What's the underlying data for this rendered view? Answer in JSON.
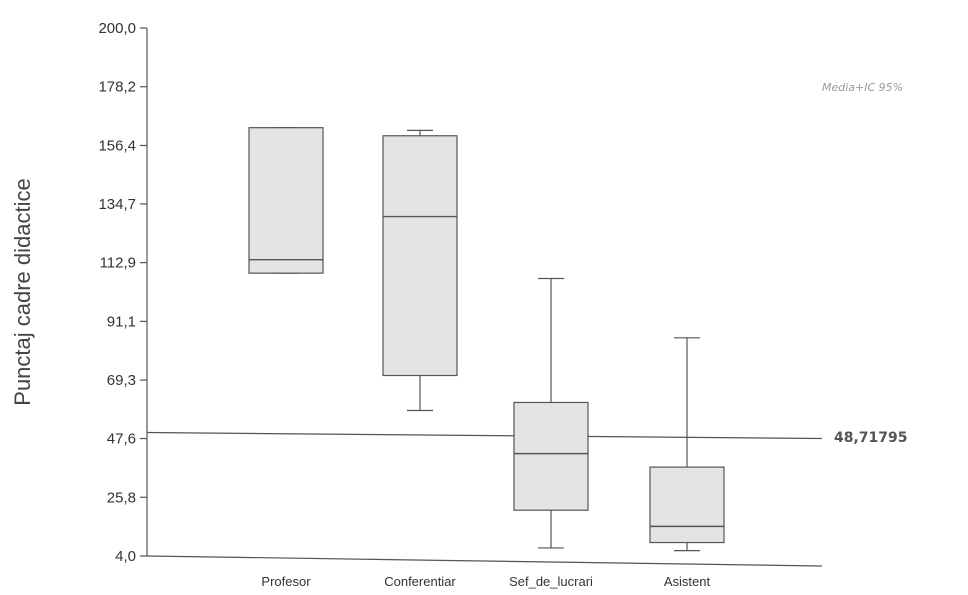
{
  "chart_data": {
    "type": "box",
    "ylabel": "Punctaj cadre didactice",
    "ylim": [
      4.0,
      200.0
    ],
    "y_ticks": [
      "200,0",
      "178,2",
      "156,4",
      "134,7",
      "112,9",
      "91,1",
      "69,3",
      "47,6",
      "25,8",
      "4,0"
    ],
    "y_tick_values": [
      200.0,
      178.2,
      156.4,
      134.7,
      112.9,
      91.1,
      69.3,
      47.6,
      25.8,
      4.0
    ],
    "categories": [
      "Profesor",
      "Conferentiar",
      "Sef_de_lucrari",
      "Asistent"
    ],
    "boxes": [
      {
        "category": "Profesor",
        "whisker_low": 109,
        "q1": 109,
        "median": 114,
        "q3": 163,
        "whisker_high": 163
      },
      {
        "category": "Conferentiar",
        "whisker_low": 58,
        "q1": 71,
        "median": 130,
        "q3": 160,
        "whisker_high": 162
      },
      {
        "category": "Sef_de_lucrari",
        "whisker_low": 7,
        "q1": 21,
        "median": 42,
        "q3": 61,
        "whisker_high": 107
      },
      {
        "category": "Asistent",
        "whisker_low": 6,
        "q1": 9,
        "median": 15,
        "q3": 37,
        "whisker_high": 85
      }
    ],
    "reference_line": {
      "value": 48.71795,
      "label": "48,71795"
    },
    "annotation": "Media+IC 95%",
    "colors": {
      "box_fill": "#e4e4e4",
      "line": "#555555"
    }
  }
}
